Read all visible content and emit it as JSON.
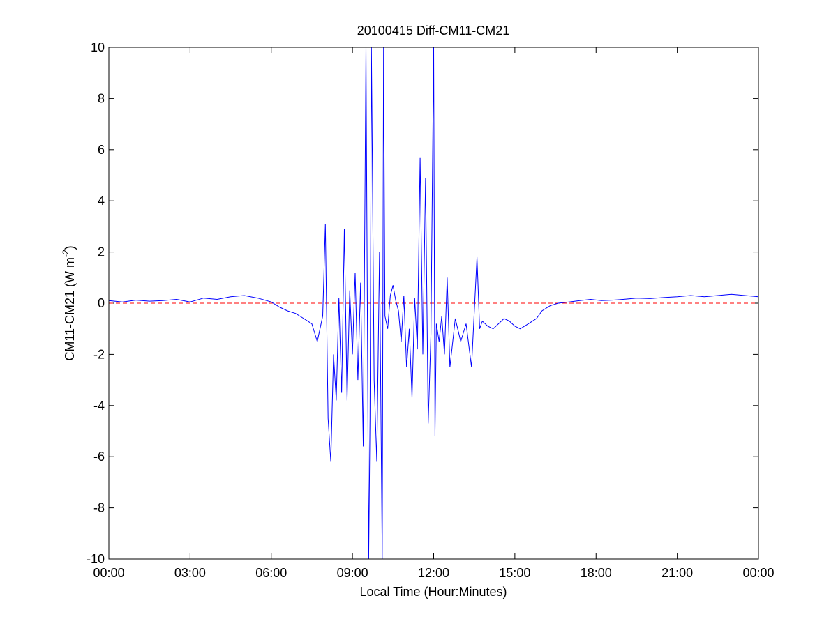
{
  "chart_data": {
    "type": "line",
    "title": "20100415 Diff-CM11-CM21",
    "xlabel": "Local Time (Hour:Minutes)",
    "ylabel": "CM11-CM21 (W m",
    "ylabel_superscript": "-2",
    "ylabel_suffix": ")",
    "xlim": [
      "00:00",
      "24:00"
    ],
    "ylim": [
      -10,
      10
    ],
    "x_ticks": [
      "00:00",
      "03:00",
      "06:00",
      "09:00",
      "12:00",
      "15:00",
      "18:00",
      "21:00",
      "00:00"
    ],
    "y_ticks": [
      "-10",
      "-8",
      "-6",
      "-4",
      "-2",
      "0",
      "2",
      "4",
      "6",
      "8",
      "10"
    ],
    "reference_line": {
      "y": 0,
      "style": "dashed",
      "color": "#ff0000"
    },
    "series_color": "#0000ff",
    "series": [
      {
        "x_hours": [
          0,
          0.5,
          1,
          1.5,
          2,
          2.5,
          3,
          3.5,
          4,
          4.5,
          5,
          5.5,
          6,
          6.3,
          6.6,
          6.9,
          7.2,
          7.5,
          7.7,
          7.9,
          8.0,
          8.1,
          8.2,
          8.3,
          8.4,
          8.5,
          8.6,
          8.7,
          8.8,
          8.9,
          9.0,
          9.1,
          9.2,
          9.3,
          9.4,
          9.5,
          9.6,
          9.65,
          9.7,
          9.8,
          9.9,
          10.0,
          10.1,
          10.15,
          10.2,
          10.3,
          10.4,
          10.5,
          10.6,
          10.7,
          10.8,
          10.9,
          11.0,
          11.1,
          11.2,
          11.3,
          11.4,
          11.5,
          11.6,
          11.7,
          11.8,
          11.9,
          12.0,
          12.05,
          12.1,
          12.2,
          12.3,
          12.4,
          12.5,
          12.6,
          12.8,
          13.0,
          13.2,
          13.4,
          13.6,
          13.7,
          13.8,
          14.0,
          14.2,
          14.4,
          14.6,
          14.8,
          15.0,
          15.2,
          15.5,
          15.8,
          16.0,
          16.3,
          16.6,
          17.0,
          17.4,
          17.8,
          18.2,
          18.6,
          19.0,
          19.5,
          20.0,
          20.5,
          21.0,
          21.5,
          22.0,
          22.5,
          23.0,
          23.5,
          24.0
        ],
        "y": [
          0.1,
          0.05,
          0.12,
          0.08,
          0.1,
          0.15,
          0.05,
          0.2,
          0.15,
          0.25,
          0.3,
          0.2,
          0.05,
          -0.15,
          -0.3,
          -0.4,
          -0.6,
          -0.8,
          -1.5,
          -0.5,
          3.1,
          -4.5,
          -6.2,
          -2.0,
          -3.8,
          0.2,
          -3.5,
          2.9,
          -3.8,
          0.5,
          -2.0,
          1.2,
          -3.0,
          0.8,
          -5.6,
          10,
          -10,
          -4.5,
          10,
          -3.0,
          -6.2,
          2.0,
          -10,
          10,
          -0.5,
          -1.0,
          0.3,
          0.7,
          0.1,
          -0.3,
          -1.5,
          0.3,
          -2.5,
          -1.0,
          -3.7,
          0.2,
          -1.8,
          5.7,
          -2.0,
          4.9,
          -4.7,
          -1.2,
          10,
          -5.2,
          -0.8,
          -1.5,
          -0.5,
          -2.0,
          1.0,
          -2.5,
          -0.6,
          -1.5,
          -0.8,
          -2.5,
          1.8,
          -1.0,
          -0.7,
          -0.9,
          -1.0,
          -0.8,
          -0.6,
          -0.7,
          -0.9,
          -1.0,
          -0.8,
          -0.6,
          -0.3,
          -0.1,
          0.0,
          0.05,
          0.1,
          0.15,
          0.1,
          0.12,
          0.15,
          0.2,
          0.18,
          0.22,
          0.25,
          0.3,
          0.25,
          0.3,
          0.35,
          0.3,
          0.25
        ]
      }
    ]
  }
}
